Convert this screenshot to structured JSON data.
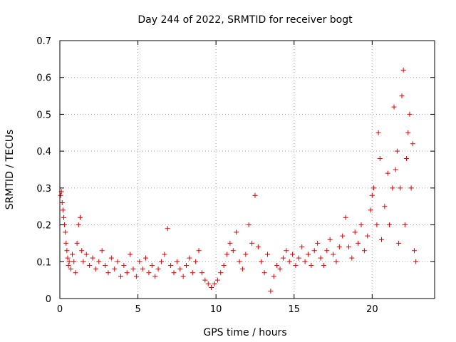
{
  "chart_data": {
    "type": "scatter",
    "title": "Day 244 of 2022, SRMTID for receiver bogt",
    "xlabel": "GPS time / hours",
    "ylabel": "SRMTID / TECUs",
    "xlim": [
      0,
      24
    ],
    "ylim": [
      0,
      0.7
    ],
    "xticks": [
      0,
      5,
      10,
      15,
      20
    ],
    "yticks": [
      0,
      0.1,
      0.2,
      0.3,
      0.4,
      0.5,
      0.6,
      0.7
    ],
    "xtick_labels": [
      "0",
      "5",
      "10",
      "15",
      "20"
    ],
    "ytick_labels": [
      "0",
      "0.1",
      "0.2",
      "0.3",
      "0.4",
      "0.5",
      "0.6",
      "0.7"
    ],
    "grid": true,
    "marker": "plus",
    "color": "#e00000",
    "series": [
      {
        "name": "SRMTID",
        "points": [
          [
            0.05,
            0.28
          ],
          [
            0.1,
            0.29
          ],
          [
            0.15,
            0.26
          ],
          [
            0.2,
            0.24
          ],
          [
            0.25,
            0.22
          ],
          [
            0.3,
            0.2
          ],
          [
            0.35,
            0.18
          ],
          [
            0.4,
            0.15
          ],
          [
            0.45,
            0.13
          ],
          [
            0.5,
            0.11
          ],
          [
            0.55,
            0.09
          ],
          [
            0.6,
            0.1
          ],
          [
            0.7,
            0.08
          ],
          [
            0.8,
            0.12
          ],
          [
            0.9,
            0.1
          ],
          [
            1.0,
            0.07
          ],
          [
            1.1,
            0.15
          ],
          [
            1.2,
            0.2
          ],
          [
            1.3,
            0.22
          ],
          [
            1.4,
            0.13
          ],
          [
            1.5,
            0.1
          ],
          [
            1.7,
            0.12
          ],
          [
            1.9,
            0.09
          ],
          [
            2.1,
            0.11
          ],
          [
            2.3,
            0.08
          ],
          [
            2.5,
            0.1
          ],
          [
            2.7,
            0.13
          ],
          [
            2.9,
            0.09
          ],
          [
            3.1,
            0.07
          ],
          [
            3.3,
            0.11
          ],
          [
            3.5,
            0.08
          ],
          [
            3.7,
            0.1
          ],
          [
            3.9,
            0.06
          ],
          [
            4.1,
            0.09
          ],
          [
            4.3,
            0.07
          ],
          [
            4.5,
            0.12
          ],
          [
            4.7,
            0.08
          ],
          [
            4.9,
            0.06
          ],
          [
            5.1,
            0.1
          ],
          [
            5.3,
            0.08
          ],
          [
            5.5,
            0.11
          ],
          [
            5.7,
            0.07
          ],
          [
            5.9,
            0.09
          ],
          [
            6.1,
            0.06
          ],
          [
            6.3,
            0.08
          ],
          [
            6.5,
            0.1
          ],
          [
            6.7,
            0.12
          ],
          [
            6.9,
            0.19
          ],
          [
            7.1,
            0.09
          ],
          [
            7.3,
            0.07
          ],
          [
            7.5,
            0.1
          ],
          [
            7.7,
            0.08
          ],
          [
            7.9,
            0.06
          ],
          [
            8.1,
            0.09
          ],
          [
            8.3,
            0.11
          ],
          [
            8.5,
            0.07
          ],
          [
            8.7,
            0.1
          ],
          [
            8.9,
            0.13
          ],
          [
            9.1,
            0.07
          ],
          [
            9.3,
            0.05
          ],
          [
            9.5,
            0.04
          ],
          [
            9.7,
            0.03
          ],
          [
            9.9,
            0.04
          ],
          [
            10.1,
            0.05
          ],
          [
            10.3,
            0.07
          ],
          [
            10.5,
            0.09
          ],
          [
            10.7,
            0.12
          ],
          [
            10.9,
            0.15
          ],
          [
            11.1,
            0.13
          ],
          [
            11.3,
            0.18
          ],
          [
            11.5,
            0.1
          ],
          [
            11.7,
            0.08
          ],
          [
            11.9,
            0.12
          ],
          [
            12.1,
            0.2
          ],
          [
            12.3,
            0.15
          ],
          [
            12.5,
            0.28
          ],
          [
            12.7,
            0.14
          ],
          [
            12.9,
            0.1
          ],
          [
            13.1,
            0.07
          ],
          [
            13.3,
            0.12
          ],
          [
            13.5,
            0.02
          ],
          [
            13.7,
            0.06
          ],
          [
            13.9,
            0.09
          ],
          [
            14.1,
            0.08
          ],
          [
            14.3,
            0.11
          ],
          [
            14.5,
            0.13
          ],
          [
            14.7,
            0.1
          ],
          [
            14.9,
            0.12
          ],
          [
            15.1,
            0.09
          ],
          [
            15.3,
            0.11
          ],
          [
            15.5,
            0.14
          ],
          [
            15.7,
            0.1
          ],
          [
            15.9,
            0.12
          ],
          [
            16.1,
            0.09
          ],
          [
            16.3,
            0.13
          ],
          [
            16.5,
            0.15
          ],
          [
            16.7,
            0.11
          ],
          [
            16.9,
            0.09
          ],
          [
            17.1,
            0.13
          ],
          [
            17.3,
            0.16
          ],
          [
            17.5,
            0.12
          ],
          [
            17.7,
            0.1
          ],
          [
            17.9,
            0.14
          ],
          [
            18.1,
            0.17
          ],
          [
            18.3,
            0.22
          ],
          [
            18.5,
            0.14
          ],
          [
            18.7,
            0.11
          ],
          [
            18.9,
            0.18
          ],
          [
            19.1,
            0.15
          ],
          [
            19.3,
            0.2
          ],
          [
            19.5,
            0.13
          ],
          [
            19.7,
            0.17
          ],
          [
            19.9,
            0.24
          ],
          [
            20.0,
            0.28
          ],
          [
            20.1,
            0.3
          ],
          [
            20.3,
            0.2
          ],
          [
            20.4,
            0.45
          ],
          [
            20.5,
            0.38
          ],
          [
            20.6,
            0.16
          ],
          [
            20.8,
            0.25
          ],
          [
            21.0,
            0.34
          ],
          [
            21.1,
            0.2
          ],
          [
            21.3,
            0.3
          ],
          [
            21.4,
            0.52
          ],
          [
            21.5,
            0.35
          ],
          [
            21.6,
            0.4
          ],
          [
            21.7,
            0.15
          ],
          [
            21.8,
            0.3
          ],
          [
            21.9,
            0.55
          ],
          [
            22.0,
            0.62
          ],
          [
            22.1,
            0.2
          ],
          [
            22.2,
            0.38
          ],
          [
            22.3,
            0.45
          ],
          [
            22.4,
            0.5
          ],
          [
            22.5,
            0.3
          ],
          [
            22.6,
            0.42
          ],
          [
            22.7,
            0.13
          ],
          [
            22.8,
            0.1
          ]
        ]
      }
    ]
  }
}
